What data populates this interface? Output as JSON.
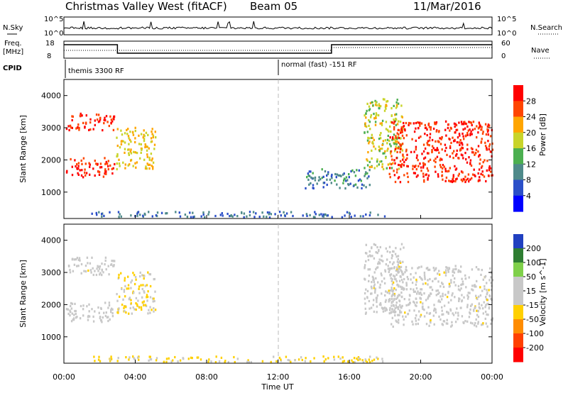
{
  "header": {
    "station": "Christmas Valley West (fitACF)",
    "beam": "Beam 05",
    "date": "11/Mar/2016"
  },
  "aux_panels": {
    "nsky": {
      "left_label": "N.Sky",
      "right_label": "N.Search",
      "left_ticks": [
        "10^5",
        "10^0"
      ],
      "right_ticks": [
        "10^5",
        "10^0"
      ]
    },
    "freq": {
      "left_label_top": "Freq.",
      "left_label_bottom": "[MHz]",
      "right_label": "Nave",
      "left_ticks": [
        "18",
        "8"
      ],
      "right_ticks": [
        "60",
        "0"
      ]
    },
    "cpid": {
      "label": "CPID",
      "segments": [
        {
          "start_hour": 0,
          "end_hour": 12,
          "text": "themis 3300 RF"
        },
        {
          "start_hour": 12,
          "end_hour": 24,
          "text": "normal (fast) -151 RF"
        }
      ]
    }
  },
  "time_axis": {
    "label": "Time UT",
    "ticks": [
      "00:00",
      "04:00",
      "08:00",
      "12:00",
      "16:00",
      "20:00",
      "00:00"
    ],
    "tick_hours": [
      0,
      4,
      8,
      12,
      16,
      20,
      24
    ]
  },
  "chart_data": [
    {
      "type": "heatmap",
      "title": "",
      "xlabel": "",
      "ylabel": "Slant Range [km]",
      "xlim": [
        0,
        24
      ],
      "ylim": [
        180,
        4500
      ],
      "yticks": [
        1000,
        2000,
        3000,
        4000
      ],
      "colorbar": {
        "label": "Power [dB]",
        "ticks": [
          "4",
          "8",
          "12",
          "16",
          "20",
          "24",
          "28"
        ],
        "colors": [
          "#0000ff",
          "#2b4fc8",
          "#4f8a8a",
          "#4caf50",
          "#c8d42a",
          "#ffa500",
          "#ff4500",
          "#ff0000"
        ]
      },
      "regions": [
        {
          "t": [
            0.1,
            2.8
          ],
          "r": [
            1450,
            2050
          ],
          "value": 28
        },
        {
          "t": [
            0.1,
            2.8
          ],
          "r": [
            2900,
            3450
          ],
          "value": 28
        },
        {
          "t": [
            2.9,
            5.1
          ],
          "r": [
            1700,
            3000
          ],
          "value": 20
        },
        {
          "t": [
            13.5,
            17.2
          ],
          "r": [
            1100,
            1700
          ],
          "value": 10
        },
        {
          "t": [
            16.8,
            19.0
          ],
          "r": [
            1700,
            3900
          ],
          "value": 18
        },
        {
          "t": [
            18.2,
            24.0
          ],
          "r": [
            1300,
            3200
          ],
          "value": 28
        },
        {
          "t": [
            1.5,
            18.0
          ],
          "r": [
            200,
            380
          ],
          "value": 8
        }
      ]
    },
    {
      "type": "heatmap",
      "title": "",
      "xlabel": "Time UT",
      "ylabel": "Slant Range [km]",
      "xlim": [
        0,
        24
      ],
      "ylim": [
        180,
        4500
      ],
      "yticks": [
        1000,
        2000,
        3000,
        4000
      ],
      "colorbar": {
        "label": "Velocity [m s^-1]",
        "ticks": [
          "200",
          "100",
          "50",
          "15",
          "-15",
          "-50",
          "-100",
          "-200"
        ],
        "colors": [
          "#2040c0",
          "#2e7d32",
          "#7fd04a",
          "#c8c8c8",
          "#c8c8c8",
          "#ffd000",
          "#ff8c00",
          "#ff4000",
          "#ff0000"
        ]
      },
      "regions": [
        {
          "t": [
            0.1,
            2.8
          ],
          "r": [
            1450,
            2050
          ],
          "value": 0
        },
        {
          "t": [
            0.1,
            2.8
          ],
          "r": [
            2900,
            3450
          ],
          "value": 0
        },
        {
          "t": [
            2.9,
            5.1
          ],
          "r": [
            1700,
            3000
          ],
          "value": -30
        },
        {
          "t": [
            16.8,
            19.0
          ],
          "r": [
            1700,
            3900
          ],
          "value": 0
        },
        {
          "t": [
            18.2,
            24.0
          ],
          "r": [
            1300,
            3200
          ],
          "value": 0
        },
        {
          "t": [
            1.5,
            18.0
          ],
          "r": [
            200,
            380
          ],
          "value": -40
        }
      ]
    }
  ]
}
